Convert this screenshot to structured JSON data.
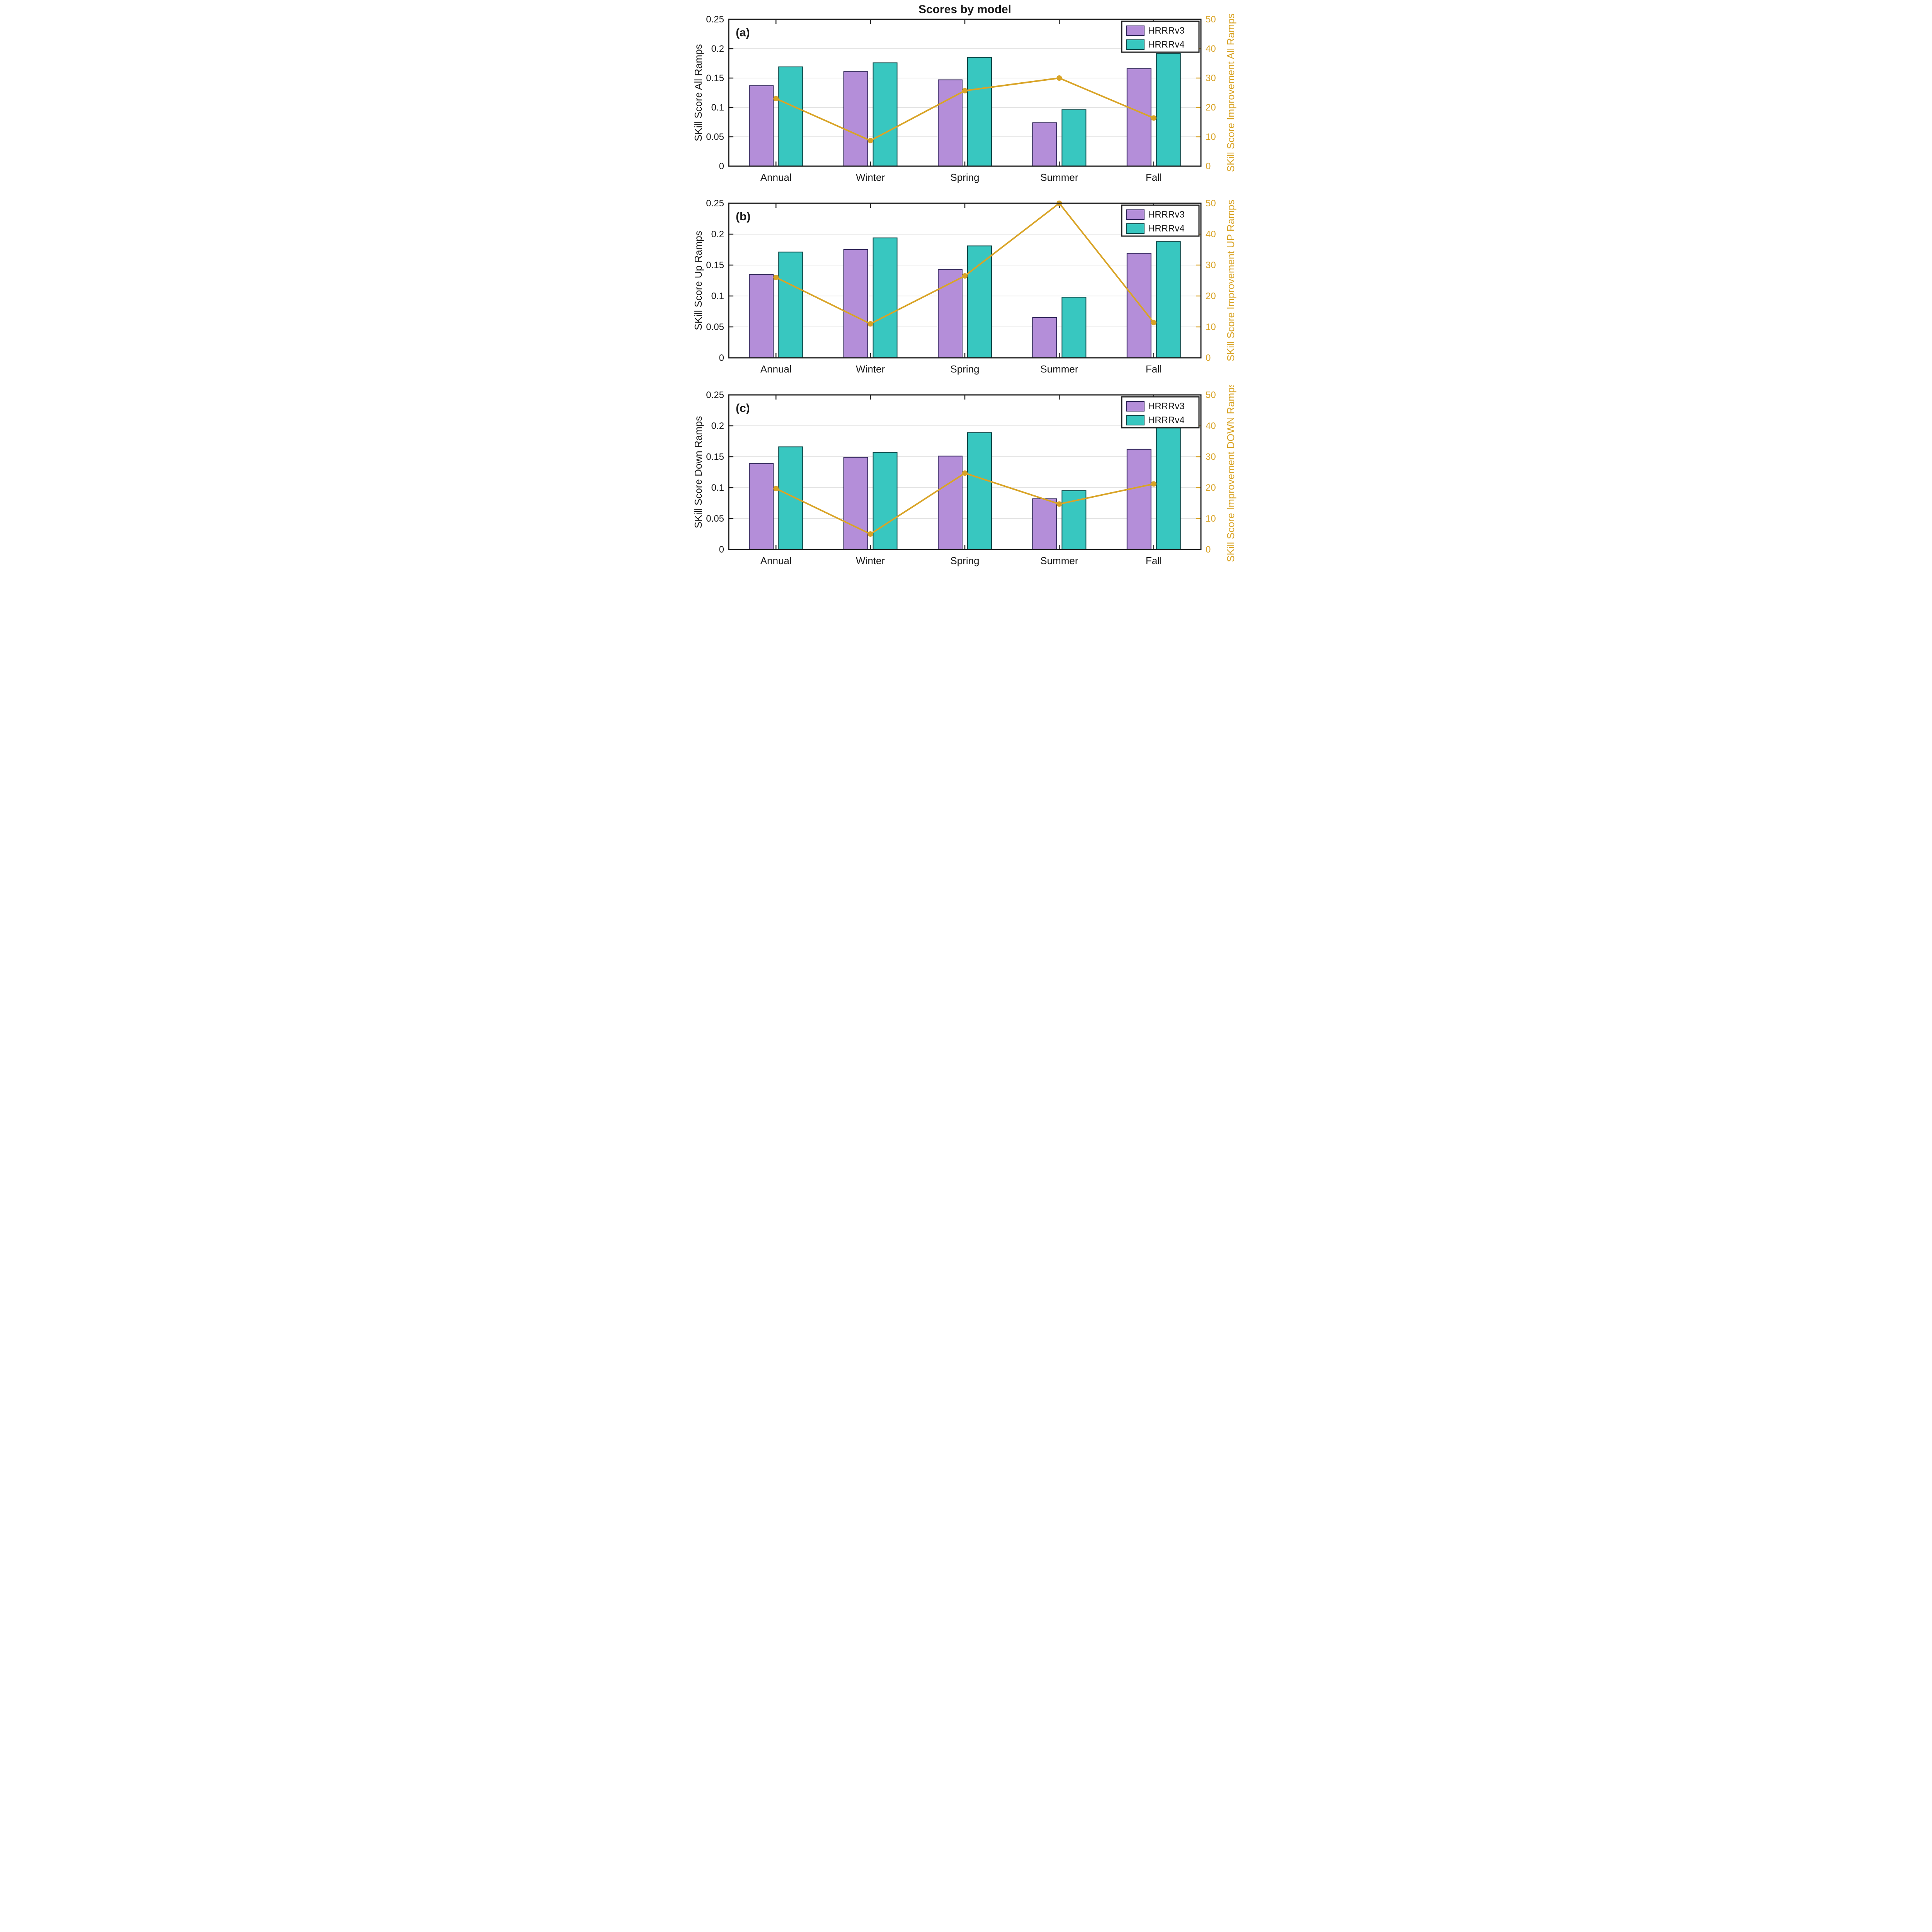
{
  "figure_title": "Scores by model",
  "legend": {
    "items": [
      "HRRRv3",
      "HRRRv4"
    ],
    "position": "top-right"
  },
  "colors": {
    "series": [
      {
        "name": "HRRRv3",
        "fill": "#b48ed9",
        "edge": "#31265a"
      },
      {
        "name": "HRRRv4",
        "fill": "#38c7c0",
        "edge": "#0f4a4a"
      }
    ],
    "line": "#d9a427",
    "right_axis_text": "#d9a427",
    "axis": "#1a1a1a",
    "grid": "#dcdcdc",
    "background": "#ffffff"
  },
  "chart_data": [
    {
      "type": "bar+line",
      "panel_label": "(a)",
      "title": "Scores by model",
      "categories": [
        "Annual",
        "Winter",
        "Spring",
        "Summer",
        "Fall"
      ],
      "series": [
        {
          "name": "HRRRv3",
          "values": [
            0.137,
            0.161,
            0.147,
            0.074,
            0.166
          ]
        },
        {
          "name": "HRRRv4",
          "values": [
            0.169,
            0.176,
            0.185,
            0.096,
            0.192
          ]
        }
      ],
      "line_series": {
        "name": "SKill Score Improvement All Ramps",
        "values": [
          23,
          8.7,
          25.7,
          30,
          16.4
        ]
      },
      "ylabel_left": "SKill Score All Ramps",
      "ylabel_right": "SKill Score Improvement All Ramps",
      "ylim_left": [
        0,
        0.25
      ],
      "ylim_right": [
        0,
        50
      ],
      "yticks_left": [
        0,
        0.05,
        0.1,
        0.15,
        0.2,
        0.25
      ],
      "yticks_right": [
        0,
        10,
        20,
        30,
        40,
        50
      ],
      "grid": "horizontal",
      "legend": [
        "HRRRv3",
        "HRRRv4"
      ]
    },
    {
      "type": "bar+line",
      "panel_label": "(b)",
      "title": "",
      "categories": [
        "Annual",
        "Winter",
        "Spring",
        "Summer",
        "Fall"
      ],
      "series": [
        {
          "name": "HRRRv3",
          "values": [
            0.135,
            0.175,
            0.143,
            0.065,
            0.169
          ]
        },
        {
          "name": "HRRRv4",
          "values": [
            0.171,
            0.194,
            0.181,
            0.098,
            0.188
          ]
        }
      ],
      "line_series": {
        "name": "SKill Score Improvement UP Ramps",
        "values": [
          26,
          11,
          26.5,
          50,
          11.4
        ]
      },
      "ylabel_left": "SKill Score Up Ramps",
      "ylabel_right": "SKill Score Improvement UP Ramps",
      "ylim_left": [
        0,
        0.25
      ],
      "ylim_right": [
        0,
        50
      ],
      "yticks_left": [
        0,
        0.05,
        0.1,
        0.15,
        0.2,
        0.25
      ],
      "yticks_right": [
        0,
        10,
        20,
        30,
        40,
        50
      ],
      "grid": "horizontal",
      "legend": [
        "HRRRv3",
        "HRRRv4"
      ]
    },
    {
      "type": "bar+line",
      "panel_label": "(c)",
      "title": "",
      "categories": [
        "Annual",
        "Winter",
        "Spring",
        "Summer",
        "Fall"
      ],
      "series": [
        {
          "name": "HRRRv3",
          "values": [
            0.139,
            0.149,
            0.151,
            0.082,
            0.162
          ]
        },
        {
          "name": "HRRRv4",
          "values": [
            0.166,
            0.157,
            0.189,
            0.095,
            0.198
          ]
        }
      ],
      "line_series": {
        "name": "SKill Score Improvement DOWN Ramps",
        "values": [
          19.7,
          5,
          24.7,
          14.7,
          21.2
        ]
      },
      "ylabel_left": "SKill Score Down Ramps",
      "ylabel_right": "SKill Score Improvement DOWN Ramps",
      "ylim_left": [
        0,
        0.25
      ],
      "ylim_right": [
        0,
        50
      ],
      "yticks_left": [
        0,
        0.05,
        0.1,
        0.15,
        0.2,
        0.25
      ],
      "yticks_right": [
        0,
        10,
        20,
        30,
        40,
        50
      ],
      "grid": "horizontal",
      "legend": [
        "HRRRv3",
        "HRRRv4"
      ]
    }
  ]
}
